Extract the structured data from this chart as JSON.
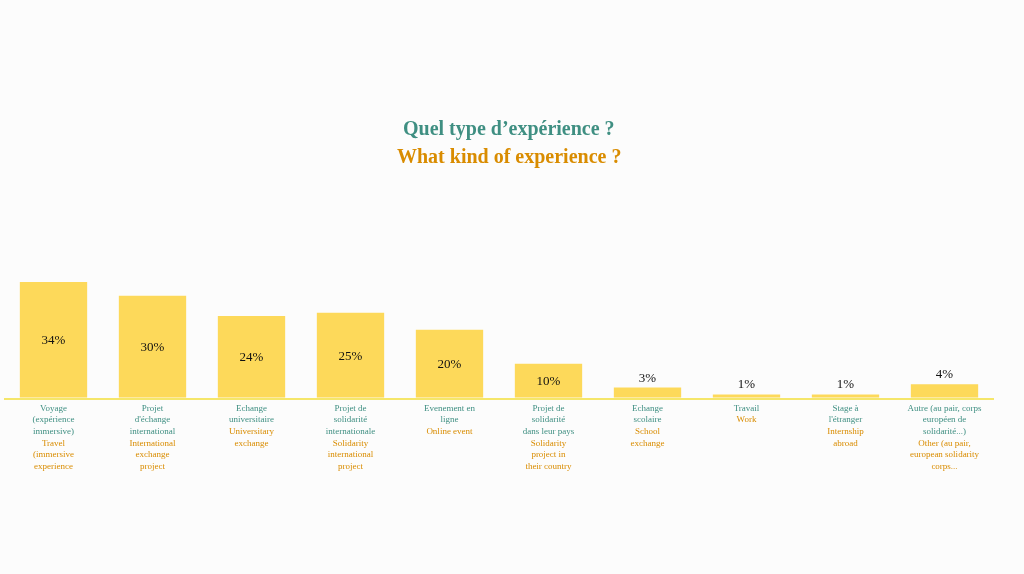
{
  "chart_data": {
    "type": "bar",
    "title": "Quel type d’expérience ?",
    "subtitle": "What kind of experience ?",
    "categories": [
      "Voyage (expérience immersive)\nTravel (immersive experience",
      "Projet d'échange international\nInternational exchange project",
      "Echange universitaire\nUniversitary exchange",
      "Projet de solidarité internationale\nSolidarity international project",
      "Evenement en ligne\nOnline event",
      "Projet de solidarité dans leur pays\nSolidarity project in their country",
      "Echange scolaire\nSchool exchange",
      "Travail\nWork",
      "Stage à l'étranger\nInternship abroad",
      "Autre (au pair, corps européen de solidarité...)\nOther (au pair, european solidarity corps..."
    ],
    "values": [
      34,
      30,
      24,
      25,
      20,
      10,
      3,
      1,
      1,
      4
    ],
    "value_labels": [
      "34%",
      "30%",
      "24%",
      "25%",
      "20%",
      "10%",
      "3%",
      "1%",
      "1%",
      "4%"
    ],
    "color": "#fdd95a",
    "tick_labels": "x",
    "legend": false
  }
}
